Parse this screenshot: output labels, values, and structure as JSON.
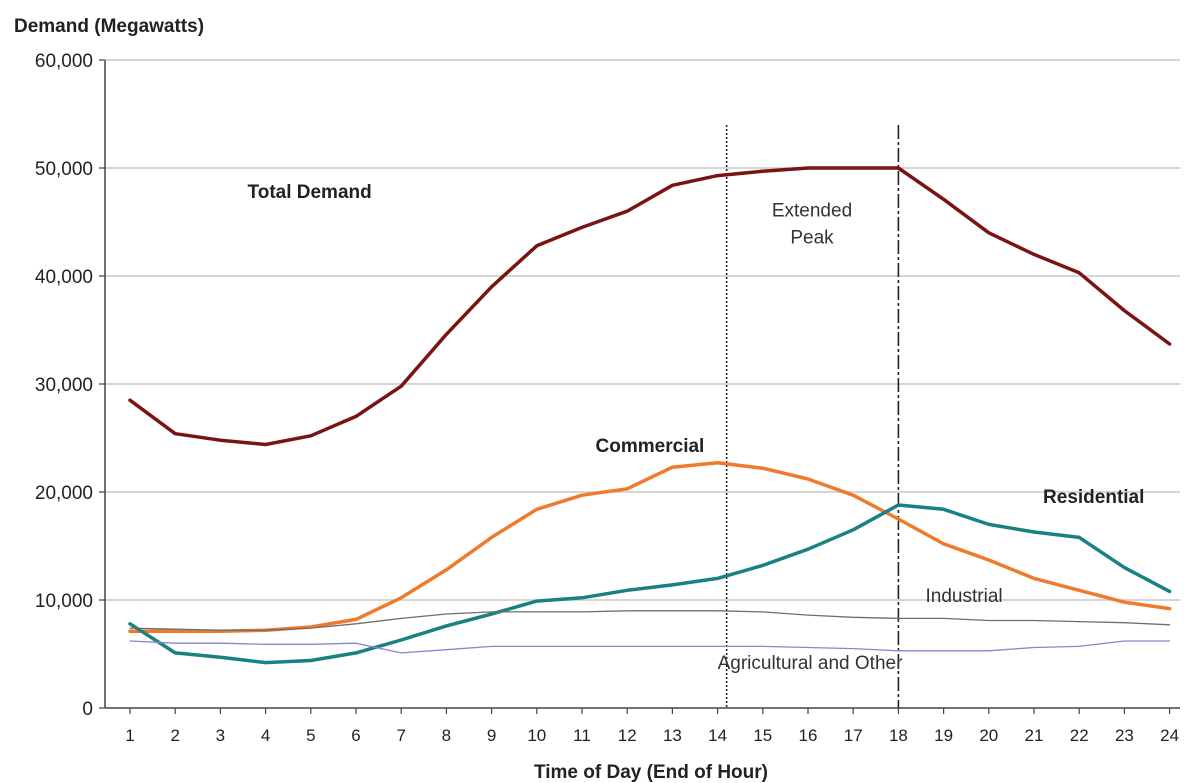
{
  "chart_data": {
    "type": "line",
    "ylabel": "Demand (Megawatts)",
    "xlabel": "Time of Day (End of Hour)",
    "ylim": [
      0,
      60000
    ],
    "yticks": [
      0,
      10000,
      20000,
      30000,
      40000,
      50000,
      60000
    ],
    "ytick_labels": [
      "0",
      "10,000",
      "20,000",
      "30,000",
      "40,000",
      "50,000",
      "60,000"
    ],
    "x": [
      1,
      2,
      3,
      4,
      5,
      6,
      7,
      8,
      9,
      10,
      11,
      12,
      13,
      14,
      15,
      16,
      17,
      18,
      19,
      20,
      21,
      22,
      23,
      24
    ],
    "x_labels": [
      "1",
      "2",
      "3",
      "4",
      "5",
      "6",
      "7",
      "8",
      "9",
      "10",
      "11",
      "12",
      "13",
      "14",
      "15",
      "16",
      "17",
      "18",
      "19",
      "20",
      "21",
      "22",
      "23",
      "24"
    ],
    "grid": "horizontal",
    "series": [
      {
        "name": "Total Demand",
        "color": "#7a1414",
        "width": 3.5,
        "values": [
          28500,
          25400,
          24800,
          24400,
          25200,
          27000,
          29800,
          34600,
          39000,
          42800,
          44500,
          46000,
          48400,
          49300,
          49700,
          50000,
          50000,
          50000,
          47100,
          44000,
          42000,
          40300,
          36800,
          33700
        ]
      },
      {
        "name": "Commercial",
        "color": "#f07a2c",
        "width": 3.5,
        "values": [
          7100,
          7100,
          7100,
          7200,
          7500,
          8200,
          10200,
          12800,
          15800,
          18400,
          19700,
          20300,
          22300,
          22700,
          22200,
          21200,
          19700,
          17500,
          15200,
          13700,
          12000,
          10900,
          9800,
          9200
        ]
      },
      {
        "name": "Residential",
        "color": "#1a8080",
        "width": 3.5,
        "values": [
          7800,
          5100,
          4700,
          4200,
          4400,
          5100,
          6300,
          7600,
          8700,
          9900,
          10200,
          10900,
          11400,
          12000,
          13200,
          14700,
          16500,
          18800,
          18400,
          17000,
          16300,
          15800,
          13000,
          10800
        ]
      },
      {
        "name": "Industrial",
        "color": "#6e6e6e",
        "width": 1.3,
        "values": [
          7400,
          7300,
          7200,
          7200,
          7400,
          7800,
          8300,
          8700,
          8900,
          8900,
          8900,
          9000,
          9000,
          9000,
          8900,
          8600,
          8400,
          8300,
          8300,
          8100,
          8100,
          8000,
          7900,
          7700
        ]
      },
      {
        "name": "Agricultural and Other",
        "color": "#8a84d0",
        "width": 1.3,
        "values": [
          6200,
          6000,
          6000,
          5900,
          5900,
          6000,
          5100,
          5400,
          5700,
          5700,
          5700,
          5700,
          5700,
          5700,
          5700,
          5600,
          5500,
          5300,
          5300,
          5300,
          5600,
          5700,
          6200,
          6200
        ]
      }
    ],
    "series_labels": [
      {
        "text": "Total Demand",
        "x": 3.6,
        "y": 47200,
        "bold": true
      },
      {
        "text": "Commercial",
        "x": 11.3,
        "y": 23700,
        "bold": true
      },
      {
        "text": "Residential",
        "x": 21.2,
        "y": 19000,
        "bold": true
      },
      {
        "text": "Industrial",
        "x": 18.6,
        "y": 9800,
        "bold": false
      },
      {
        "text": "Agricultural and Other",
        "x": 14.0,
        "y": 3600,
        "bold": false
      }
    ],
    "annotations": [
      {
        "text": "Extended",
        "x": 16.0,
        "y": 45500
      },
      {
        "text": "Peak",
        "x": 16.0,
        "y": 43000
      }
    ],
    "vlines": [
      {
        "x": 14.2,
        "style": "dotted"
      },
      {
        "x": 18.0,
        "style": "dashdot"
      }
    ]
  }
}
